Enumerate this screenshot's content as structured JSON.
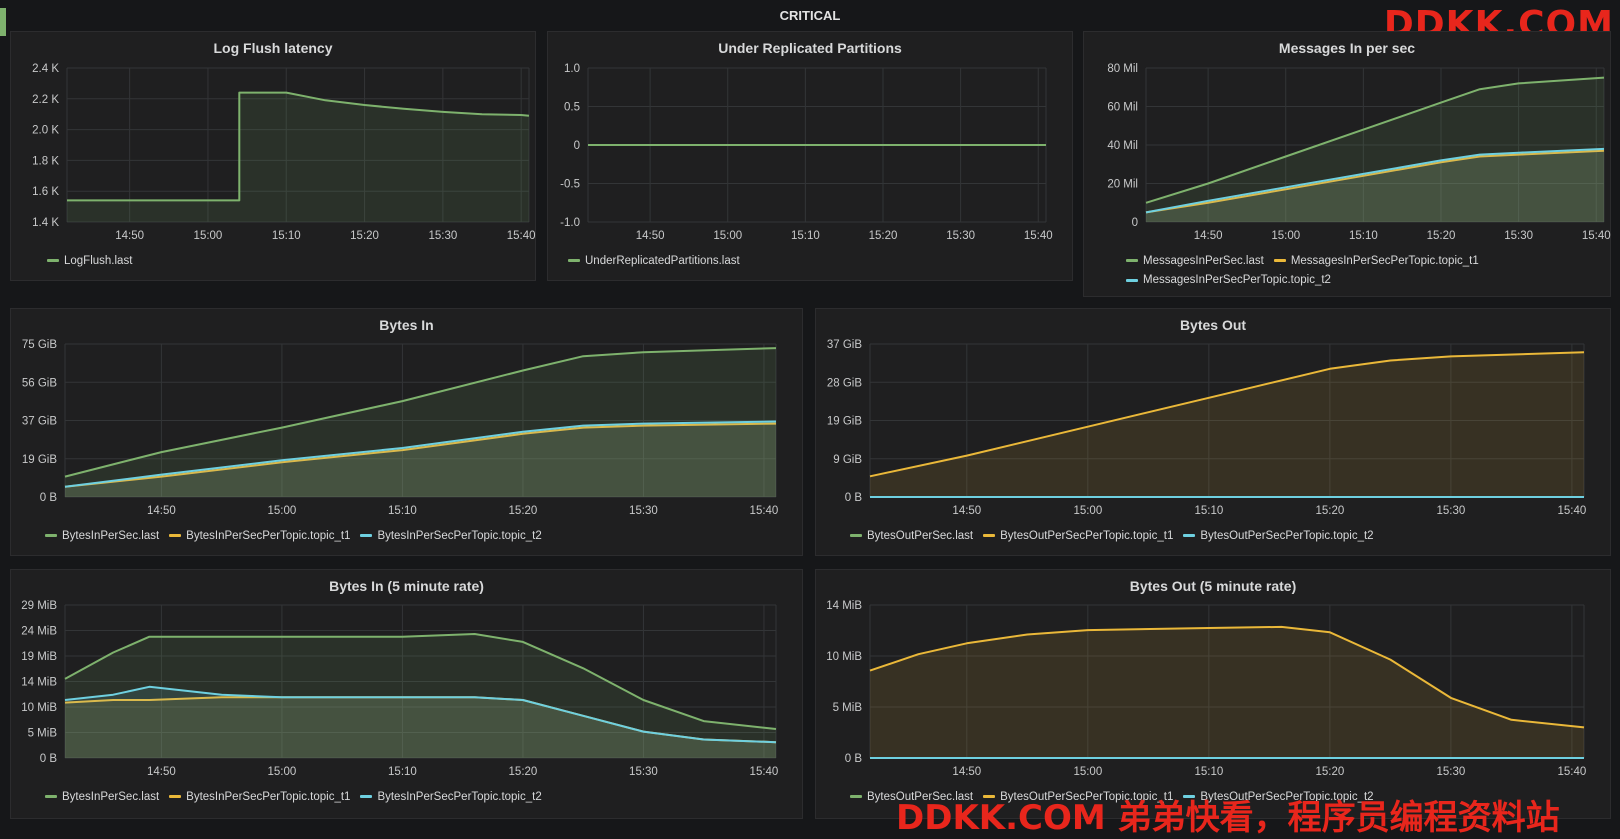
{
  "dashboard": {
    "row_title": "CRITICAL",
    "watermark_top": "DDKK.COM",
    "watermark_bottom": "DDKK.COM 弟弟快看，程序员编程资料站"
  },
  "colors": {
    "green": "#7eb26d",
    "yellow": "#eab839",
    "cyan": "#6ed0e0",
    "grid": "#333537"
  },
  "x_ticks": [
    "14:50",
    "15:00",
    "15:10",
    "15:20",
    "15:30",
    "15:40"
  ],
  "panels": [
    {
      "title": "Log Flush latency",
      "y_ticks": [
        "2.4 K",
        "2.2 K",
        "2.0 K",
        "1.8 K",
        "1.6 K",
        "1.4 K"
      ],
      "legend": [
        "LogFlush.last"
      ]
    },
    {
      "title": "Under Replicated Partitions",
      "y_ticks": [
        "1.0",
        "0.5",
        "0",
        "-0.5",
        "-1.0"
      ],
      "legend": [
        "UnderReplicatedPartitions.last"
      ]
    },
    {
      "title": "Messages In per sec",
      "y_ticks": [
        "80 Mil",
        "60 Mil",
        "40 Mil",
        "20 Mil",
        "0"
      ],
      "legend": [
        "MessagesInPerSec.last",
        "MessagesInPerSecPerTopic.topic_t1",
        "MessagesInPerSecPerTopic.topic_t2"
      ]
    },
    {
      "title": "Bytes In",
      "y_ticks": [
        "75 GiB",
        "56 GiB",
        "37 GiB",
        "19 GiB",
        "0 B"
      ],
      "legend": [
        "BytesInPerSec.last",
        "BytesInPerSecPerTopic.topic_t1",
        "BytesInPerSecPerTopic.topic_t2"
      ]
    },
    {
      "title": "Bytes Out",
      "y_ticks": [
        "37 GiB",
        "28 GiB",
        "19 GiB",
        "9 GiB",
        "0 B"
      ],
      "legend": [
        "BytesOutPerSec.last",
        "BytesOutPerSecPerTopic.topic_t1",
        "BytesOutPerSecPerTopic.topic_t2"
      ]
    },
    {
      "title": "Bytes In (5 minute rate)",
      "y_ticks": [
        "29 MiB",
        "24 MiB",
        "19 MiB",
        "14 MiB",
        "10 MiB",
        "5 MiB",
        "0 B"
      ],
      "legend": [
        "BytesInPerSec.last",
        "BytesInPerSecPerTopic.topic_t1",
        "BytesInPerSecPerTopic.topic_t2"
      ]
    },
    {
      "title": "Bytes Out (5 minute rate)",
      "y_ticks": [
        "14 MiB",
        "10 MiB",
        "5 MiB",
        "0 B"
      ],
      "legend": [
        "BytesOutPerSec.last",
        "BytesOutPerSecPerTopic.topic_t1",
        "BytesOutPerSecPerTopic.topic_t2"
      ]
    }
  ],
  "chart_data": [
    {
      "type": "area",
      "title": "Log Flush latency",
      "ylim": [
        1400,
        2400
      ],
      "x": [
        "14:42",
        "14:50",
        "15:00",
        "15:04",
        "15:04",
        "15:05",
        "15:10",
        "15:15",
        "15:20",
        "15:25",
        "15:30",
        "15:35",
        "15:40",
        "15:41"
      ],
      "series": [
        {
          "name": "LogFlush.last",
          "color": "#7eb26d",
          "values": [
            1540,
            1540,
            1540,
            1540,
            2240,
            2240,
            2240,
            2190,
            2160,
            2135,
            2115,
            2100,
            2095,
            2090
          ]
        }
      ]
    },
    {
      "type": "line",
      "title": "Under Replicated Partitions",
      "ylim": [
        -1.0,
        1.0
      ],
      "x": [
        "14:42",
        "15:41"
      ],
      "series": [
        {
          "name": "UnderReplicatedPartitions.last",
          "color": "#7eb26d",
          "values": [
            0,
            0
          ]
        }
      ]
    },
    {
      "type": "area",
      "title": "Messages In per sec",
      "ylim": [
        0,
        80
      ],
      "unit": "Mil",
      "x": [
        "14:42",
        "14:50",
        "15:00",
        "15:10",
        "15:20",
        "15:25",
        "15:30",
        "15:41"
      ],
      "series": [
        {
          "name": "MessagesInPerSec.last",
          "color": "#7eb26d",
          "values": [
            10,
            20,
            34,
            48,
            62,
            69,
            72,
            75
          ]
        },
        {
          "name": "MessagesInPerSecPerTopic.topic_t1",
          "color": "#eab839",
          "values": [
            5,
            10,
            17,
            24,
            31,
            34,
            35,
            37
          ]
        },
        {
          "name": "MessagesInPerSecPerTopic.topic_t2",
          "color": "#6ed0e0",
          "values": [
            5,
            11,
            18,
            25,
            32,
            35,
            36,
            38
          ]
        }
      ]
    },
    {
      "type": "area",
      "title": "Bytes In",
      "ylim": [
        0,
        75
      ],
      "unit": "GiB",
      "x": [
        "14:42",
        "14:50",
        "15:00",
        "15:10",
        "15:20",
        "15:25",
        "15:30",
        "15:41"
      ],
      "series": [
        {
          "name": "BytesInPerSec.last",
          "color": "#7eb26d",
          "values": [
            10,
            22,
            34,
            47,
            62,
            69,
            71,
            73
          ]
        },
        {
          "name": "BytesInPerSecPerTopic.topic_t1",
          "color": "#eab839",
          "values": [
            5,
            10,
            17,
            23,
            31,
            34,
            35,
            36
          ]
        },
        {
          "name": "BytesInPerSecPerTopic.topic_t2",
          "color": "#6ed0e0",
          "values": [
            5,
            11,
            18,
            24,
            32,
            35,
            36,
            37
          ]
        }
      ]
    },
    {
      "type": "area",
      "title": "Bytes Out",
      "ylim": [
        0,
        37
      ],
      "unit": "GiB",
      "x": [
        "14:42",
        "14:50",
        "15:00",
        "15:10",
        "15:20",
        "15:25",
        "15:30",
        "15:41"
      ],
      "series": [
        {
          "name": "BytesOutPerSec.last",
          "color": "#7eb26d",
          "values": [
            0,
            0,
            0,
            0,
            0,
            0,
            0,
            0
          ]
        },
        {
          "name": "BytesOutPerSecPerTopic.topic_t1",
          "color": "#eab839",
          "values": [
            5,
            10,
            17,
            24,
            31,
            33,
            34,
            35
          ]
        },
        {
          "name": "BytesOutPerSecPerTopic.topic_t2",
          "color": "#6ed0e0",
          "values": [
            0,
            0,
            0,
            0,
            0,
            0,
            0,
            0
          ]
        }
      ]
    },
    {
      "type": "area",
      "title": "Bytes In (5 minute rate)",
      "ylim": [
        0,
        29
      ],
      "unit": "MiB",
      "x": [
        "14:42",
        "14:46",
        "14:49",
        "14:55",
        "15:00",
        "15:10",
        "15:16",
        "15:20",
        "15:25",
        "15:30",
        "15:35",
        "15:41"
      ],
      "series": [
        {
          "name": "BytesInPerSec.last",
          "color": "#7eb26d",
          "values": [
            15,
            20,
            23,
            23,
            23,
            23,
            23.5,
            22,
            17,
            11,
            7,
            5.5
          ]
        },
        {
          "name": "BytesInPerSecPerTopic.topic_t1",
          "color": "#eab839",
          "values": [
            10.5,
            11,
            11,
            11.5,
            11.5,
            11.5,
            11.5,
            11,
            8,
            5,
            3.5,
            3
          ]
        },
        {
          "name": "BytesInPerSecPerTopic.topic_t2",
          "color": "#6ed0e0",
          "values": [
            11,
            12,
            13.5,
            12,
            11.5,
            11.5,
            11.5,
            11,
            8,
            5,
            3.5,
            3
          ]
        }
      ]
    },
    {
      "type": "area",
      "title": "Bytes Out (5 minute rate)",
      "ylim": [
        0,
        14
      ],
      "unit": "MiB",
      "x": [
        "14:42",
        "14:46",
        "14:50",
        "14:55",
        "15:00",
        "15:10",
        "15:16",
        "15:20",
        "15:25",
        "15:30",
        "15:35",
        "15:41"
      ],
      "series": [
        {
          "name": "BytesOutPerSec.last",
          "color": "#7eb26d",
          "values": [
            0,
            0,
            0,
            0,
            0,
            0,
            0,
            0,
            0,
            0,
            0,
            0
          ]
        },
        {
          "name": "BytesOutPerSecPerTopic.topic_t1",
          "color": "#eab839",
          "values": [
            8,
            9.5,
            10.5,
            11.3,
            11.7,
            11.9,
            12,
            11.5,
            9,
            5.5,
            3.5,
            2.8
          ]
        },
        {
          "name": "BytesOutPerSecPerTopic.topic_t2",
          "color": "#6ed0e0",
          "values": [
            0,
            0,
            0,
            0,
            0,
            0,
            0,
            0,
            0,
            0,
            0,
            0
          ]
        }
      ]
    }
  ]
}
